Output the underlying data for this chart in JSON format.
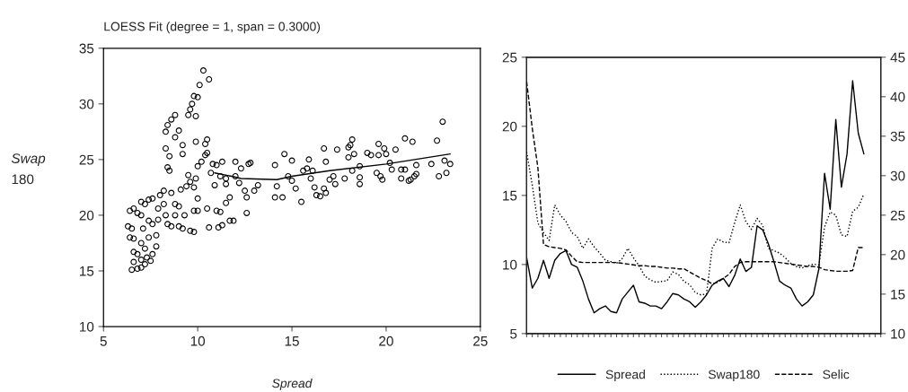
{
  "chart_data": [
    {
      "type": "scatter",
      "title": "LOESS Fit (degree = 1, span = 0.3000)",
      "xlabel": "Spread",
      "ylabel": "Swap\n180",
      "xlim": [
        5,
        25
      ],
      "ylim": [
        10,
        35
      ],
      "xticks": [
        5,
        10,
        15,
        20,
        25
      ],
      "yticks": [
        10,
        15,
        20,
        25,
        30,
        35
      ],
      "grid": false,
      "series": [
        {
          "type": "scatter",
          "marker": "circle",
          "color": "#000000",
          "x": [
            6.4,
            6.3,
            6.4,
            6.6,
            6.5,
            6.6,
            6.8,
            7.0,
            6.6,
            6.8,
            6.6,
            6.5,
            6.8,
            7.0,
            7.2,
            7.0,
            7.3,
            7.5,
            7.6,
            7.2,
            7.0,
            7.4,
            7.1,
            7.4,
            7.6,
            7.2,
            7.0,
            7.4,
            7.8,
            7.8,
            7.9,
            7.9,
            7.6,
            8.0,
            8.2,
            8.3,
            8.4,
            8.6,
            8.2,
            8.6,
            8.8,
            8.8,
            9.0,
            9.0,
            9.2,
            9.6,
            9.8,
            9.3,
            9.1,
            9.4,
            9.5,
            9.6,
            9.8,
            9.9,
            10.0,
            10.2,
            10.4,
            10.5,
            10.8,
            11.0,
            11.3,
            10.7,
            11.2,
            11.5,
            11.5,
            10.9,
            10.5,
            10.0,
            10.0,
            9.8,
            10.6,
            11.1,
            11.3,
            11.7,
            11.9,
            11.0,
            11.5,
            11.7,
            11.2,
            8.3,
            8.4,
            8.6,
            8.8,
            8.3,
            8.5,
            8.8,
            9.0,
            9.2,
            9.2,
            9.5,
            9.6,
            9.8,
            9.9,
            9.7,
            10.0,
            10.1,
            10.3,
            10.6,
            9.9,
            10.4,
            10.5,
            8.4,
            8.5,
            12.0,
            12.3,
            12.7,
            12.8,
            12.0,
            12.2,
            12.5,
            12.6,
            12.6,
            13.0,
            13.2,
            14.1,
            14.2,
            14.1,
            14.5,
            14.6,
            14.8,
            15.0,
            15.0,
            15.2,
            15.5,
            15.6,
            15.8,
            15.9,
            16.0,
            16.1,
            16.2,
            16.3,
            16.5,
            16.7,
            16.8,
            16.7,
            16.8,
            17.0,
            17.2,
            17.4,
            17.3,
            17.8,
            18.0,
            18.2,
            18.1,
            18.0,
            18.3,
            18.2,
            18.6,
            18.6,
            18.6,
            19.0,
            19.2,
            19.6,
            19.6,
            19.7,
            19.8,
            19.5,
            20.0,
            19.9,
            20.2,
            20.3,
            20.5,
            20.8,
            21.0,
            20.8,
            21.0,
            21.2,
            21.3,
            21.4,
            21.5,
            21.6,
            21.6,
            22.4,
            22.7,
            22.8,
            23.0,
            23.1,
            23.2,
            23.4
          ],
          "values": [
            20.4,
            19.0,
            18.0,
            17.9,
            18.8,
            20.6,
            20.2,
            20.0,
            16.7,
            16.5,
            15.8,
            15.1,
            15.2,
            15.3,
            15.6,
            16.0,
            16.2,
            15.9,
            16.5,
            17.0,
            17.5,
            18.0,
            18.8,
            19.5,
            19.2,
            21.0,
            21.2,
            21.4,
            17.2,
            18.2,
            19.6,
            20.6,
            21.5,
            21.8,
            21.0,
            20.0,
            19.2,
            19.0,
            22.2,
            22.0,
            21.0,
            20.0,
            20.8,
            19.0,
            18.8,
            18.6,
            18.5,
            20.0,
            22.3,
            22.6,
            23.6,
            23.0,
            22.5,
            23.3,
            24.4,
            24.8,
            25.4,
            25.6,
            24.6,
            24.5,
            24.8,
            23.8,
            23.5,
            23.3,
            22.8,
            22.7,
            20.6,
            21.5,
            20.4,
            20.4,
            18.9,
            18.9,
            19.1,
            19.5,
            19.5,
            20.4,
            21.1,
            21.6,
            20.3,
            27.5,
            28.1,
            28.6,
            29.0,
            26.0,
            25.3,
            27.0,
            27.6,
            26.3,
            25.5,
            29.0,
            29.5,
            30.7,
            28.9,
            30.0,
            30.6,
            31.7,
            33.0,
            32.2,
            26.6,
            26.4,
            26.8,
            24.3,
            24.0,
            24.8,
            24.2,
            24.6,
            24.7,
            23.5,
            22.9,
            22.2,
            21.6,
            20.2,
            22.2,
            22.7,
            24.5,
            22.6,
            21.6,
            21.6,
            25.5,
            23.5,
            24.9,
            23.1,
            22.4,
            21.2,
            24.0,
            24.2,
            25.0,
            23.3,
            24.0,
            22.5,
            21.8,
            21.7,
            22.4,
            22.0,
            26.0,
            24.8,
            23.2,
            23.5,
            25.9,
            22.8,
            23.3,
            26.1,
            26.8,
            26.3,
            25.2,
            25.5,
            24.0,
            24.4,
            23.4,
            22.8,
            25.6,
            25.4,
            26.4,
            25.4,
            23.5,
            23.2,
            23.8,
            25.5,
            26.0,
            24.7,
            24.1,
            25.9,
            24.1,
            24.1,
            23.3,
            26.9,
            23.1,
            23.2,
            26.6,
            23.5,
            24.5,
            23.7,
            24.6,
            26.7,
            23.5,
            28.4,
            24.9,
            23.8,
            24.6
          ]
        },
        {
          "type": "line",
          "color": "#000000",
          "x": [
            10.9,
            11.8,
            12.3,
            14.2,
            15.0,
            17.0,
            20.0,
            23.4
          ],
          "values": [
            23.8,
            23.5,
            23.3,
            23.2,
            23.5,
            24.0,
            24.6,
            25.5
          ]
        }
      ]
    },
    {
      "type": "line",
      "categories": [
        null,
        null,
        null,
        null,
        null,
        null,
        null,
        null,
        null,
        null,
        null,
        null,
        null,
        null,
        null,
        null,
        null,
        null,
        null,
        null,
        null,
        null,
        null,
        null,
        null,
        null,
        null,
        null,
        null,
        null,
        null,
        null,
        null,
        null,
        null,
        null,
        null,
        null,
        null,
        null,
        null,
        null,
        null,
        null,
        null,
        null,
        null,
        null,
        null,
        null,
        null,
        null,
        null,
        null,
        null,
        null,
        null,
        null,
        null,
        null,
        null,
        null,
        null,
        null
      ],
      "ylim": [
        5,
        25
      ],
      "yticks": [
        5,
        10,
        15,
        20,
        25
      ],
      "y2lim": [
        10,
        45
      ],
      "y2ticks": [
        10,
        15,
        20,
        25,
        30,
        35,
        40,
        45
      ],
      "grid": false,
      "legend": "bottom",
      "series": [
        {
          "name": "Spread",
          "color": "#000000",
          "line_style": "solid",
          "values": [
            10.5,
            8.3,
            9.0,
            10.3,
            9.0,
            10.3,
            10.8,
            11.0,
            10.0,
            9.8,
            8.8,
            7.5,
            6.5,
            6.8,
            7.0,
            6.6,
            6.5,
            7.5,
            8.0,
            8.5,
            7.3,
            7.2,
            7.0,
            7.0,
            6.8,
            7.3,
            7.9,
            7.8,
            7.5,
            7.3,
            6.9,
            7.3,
            7.8,
            8.5,
            8.8,
            9.0,
            8.4,
            9.2,
            10.4,
            9.5,
            9.8,
            12.8,
            12.5,
            11.5,
            10.2,
            8.8,
            8.5,
            8.3,
            7.5,
            7.0,
            7.3,
            7.8,
            9.7,
            16.6,
            14.0,
            20.5,
            15.6,
            18.0,
            23.3,
            19.5,
            18.0,
            null,
            null,
            null
          ]
        },
        {
          "name": "Swap180",
          "color": "#000000",
          "line_style": "dotted",
          "axis": "y2",
          "values": [
            33.0,
            28.8,
            24.0,
            22.8,
            21.8,
            26.3,
            25.0,
            24.2,
            22.8,
            22.3,
            20.8,
            22.0,
            21.0,
            20.2,
            19.3,
            19.1,
            18.9,
            19.5,
            20.8,
            19.6,
            18.6,
            17.3,
            16.8,
            16.5,
            16.6,
            16.7,
            17.8,
            17.5,
            16.6,
            16.2,
            15.2,
            14.9,
            15.0,
            20.8,
            22.0,
            21.6,
            21.5,
            24.0,
            26.3,
            24.2,
            23.2,
            24.6,
            23.7,
            20.8,
            20.5,
            20.2,
            19.6,
            18.9,
            18.5,
            18.3,
            18.6,
            18.8,
            18.7,
            23.5,
            25.4,
            25.0,
            22.5,
            22.3,
            25.5,
            26.0,
            27.7,
            null,
            null,
            null
          ]
        },
        {
          "name": "Selic",
          "color": "#000000",
          "line_style": "dashed",
          "axis": "y2",
          "values": [
            41.9,
            36.0,
            31.0,
            21.3,
            21.0,
            20.9,
            20.8,
            20.6,
            19.8,
            19.1,
            19.0,
            19.0,
            19.0,
            19.0,
            19.0,
            19.0,
            19.0,
            18.9,
            18.8,
            18.7,
            18.6,
            18.6,
            18.5,
            18.5,
            18.4,
            18.3,
            18.3,
            18.2,
            18.2,
            17.8,
            17.4,
            17.0,
            16.7,
            16.3,
            16.5,
            17.0,
            17.5,
            18.5,
            19.0,
            19.1,
            19.1,
            19.1,
            19.1,
            19.1,
            19.1,
            19.0,
            18.9,
            18.8,
            18.7,
            18.6,
            18.5,
            18.5,
            18.4,
            18.1,
            18.0,
            17.9,
            17.9,
            17.9,
            18.0,
            20.9,
            20.9,
            null,
            null,
            null
          ]
        }
      ]
    }
  ]
}
